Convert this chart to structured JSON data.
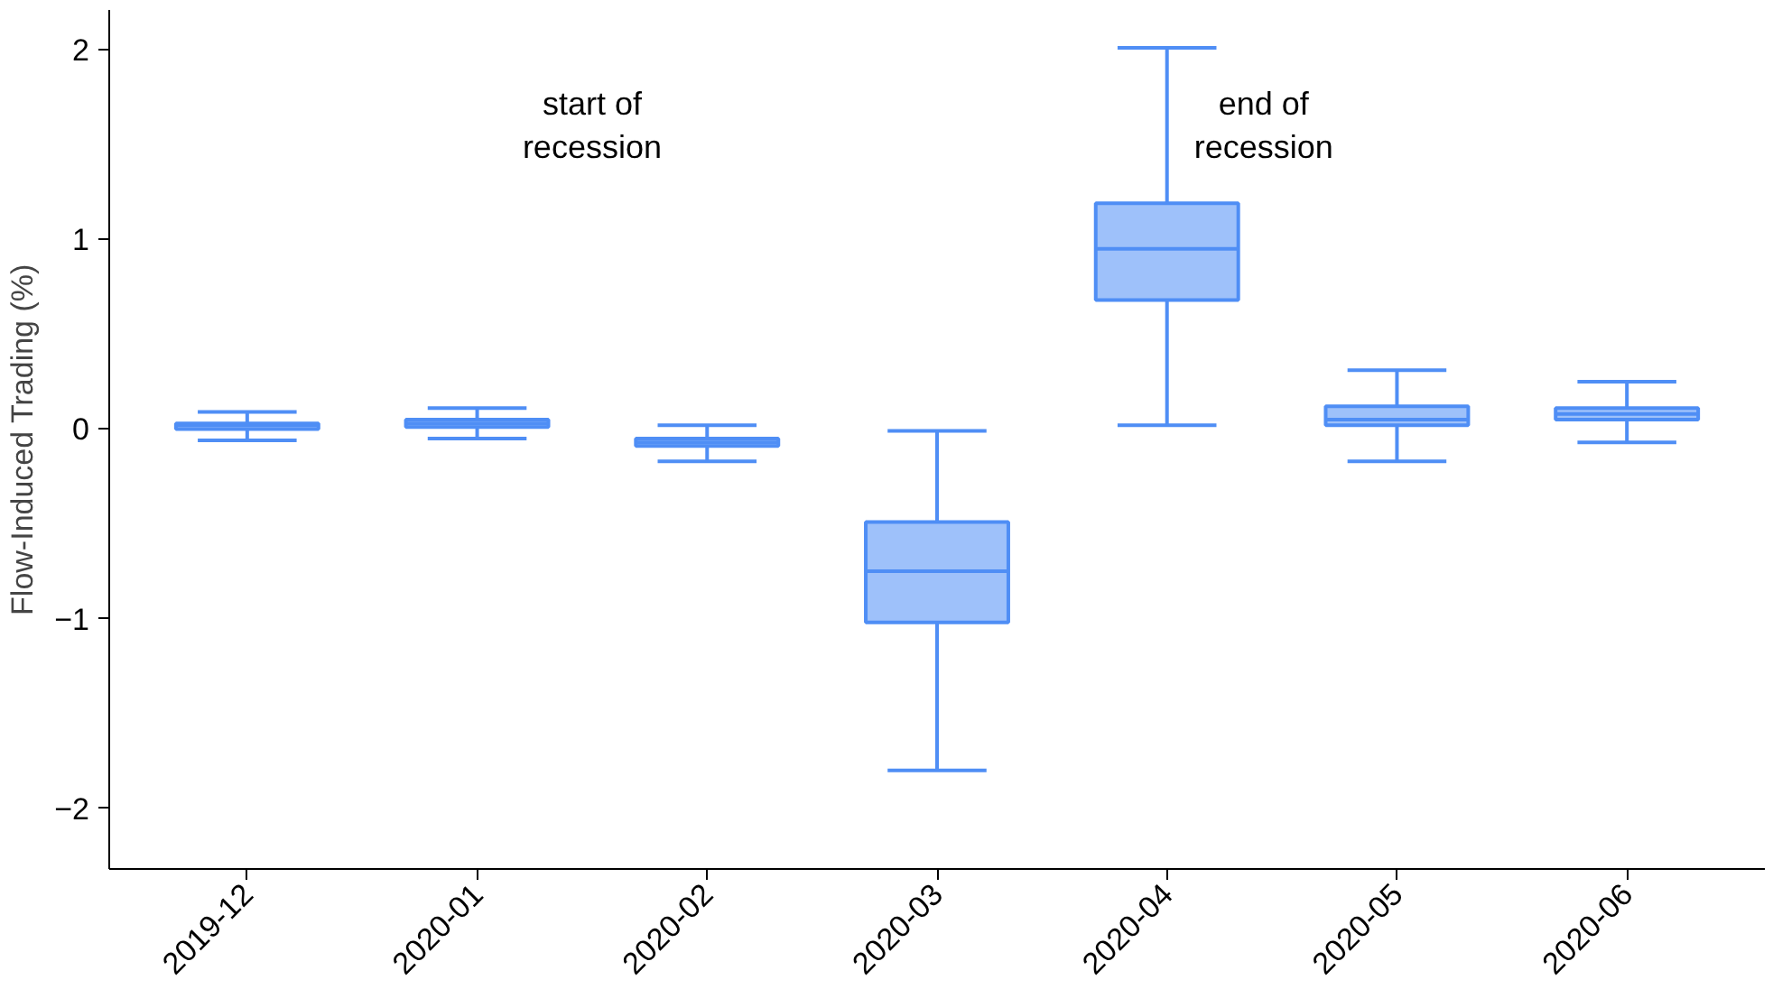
{
  "chart_data": {
    "type": "box",
    "ylabel": "Flow-Induced Trading (%)",
    "categories": [
      "2019-12",
      "2020-01",
      "2020-02",
      "2020-03",
      "2020-04",
      "2020-05",
      "2020-06"
    ],
    "color": "#4f8ef5",
    "boxes": [
      {
        "low": -0.06,
        "q1": 0.0,
        "median": 0.02,
        "q3": 0.03,
        "high": 0.09
      },
      {
        "low": -0.05,
        "q1": 0.01,
        "median": 0.03,
        "q3": 0.05,
        "high": 0.11
      },
      {
        "low": -0.17,
        "q1": -0.09,
        "median": -0.07,
        "q3": -0.05,
        "high": 0.02
      },
      {
        "low": -1.8,
        "q1": -1.02,
        "median": -0.75,
        "q3": -0.49,
        "high": -0.01
      },
      {
        "low": 0.02,
        "q1": 0.68,
        "median": 0.95,
        "q3": 1.19,
        "high": 2.01
      },
      {
        "low": -0.17,
        "q1": 0.02,
        "median": 0.05,
        "q3": 0.12,
        "high": 0.31
      },
      {
        "low": -0.07,
        "q1": 0.05,
        "median": 0.08,
        "q3": 0.11,
        "high": 0.25
      }
    ],
    "ylim": [
      -2.32,
      2.21
    ],
    "yticks": [
      -2,
      -1,
      0,
      1,
      2
    ],
    "grid": false,
    "annotations": [
      "start of\nrecession",
      "end of\nrecession"
    ]
  }
}
